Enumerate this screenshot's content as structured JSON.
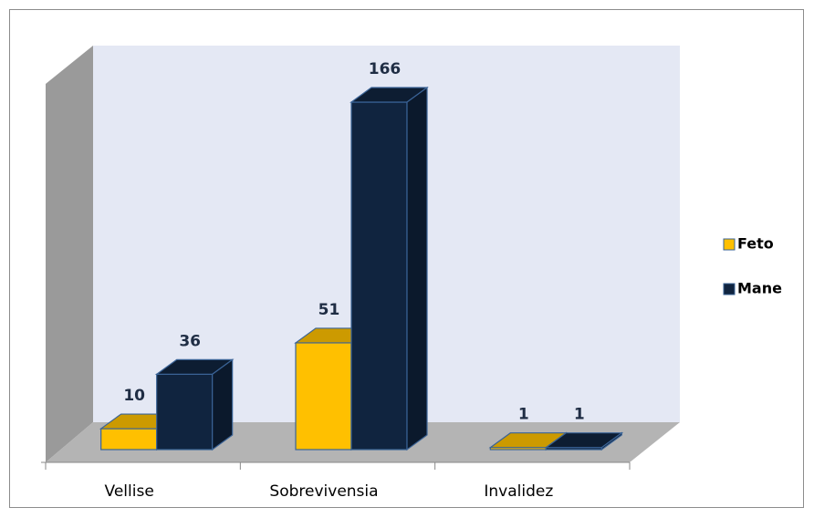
{
  "chart_data": {
    "type": "bar3d",
    "categories": [
      "Vellise",
      "Sobrevivensia",
      "Invalidez"
    ],
    "series": [
      {
        "name": "Feto",
        "color": "#ffc000",
        "values": [
          10,
          51,
          1
        ]
      },
      {
        "name": "Mane",
        "color": "#10243f",
        "values": [
          36,
          166,
          1
        ]
      }
    ],
    "legend": "right"
  }
}
